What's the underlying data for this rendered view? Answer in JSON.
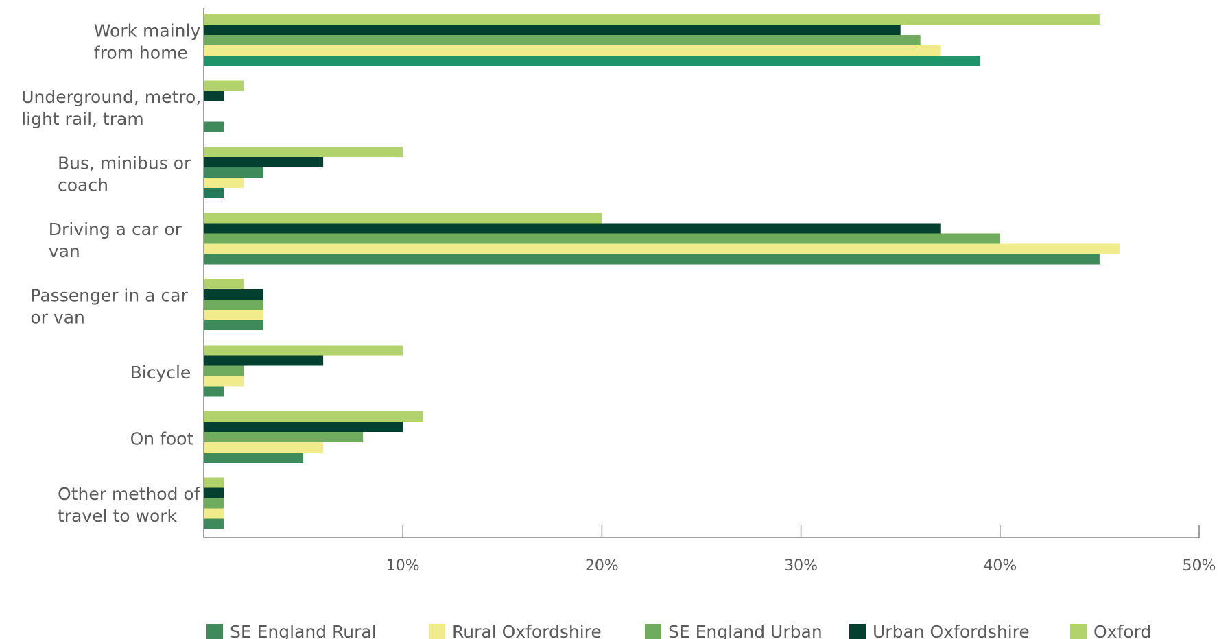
{
  "chart_data": {
    "type": "bar",
    "orientation": "horizontal",
    "categories": [
      [
        "Work mainly",
        "from home"
      ],
      [
        "Underground, metro,",
        "light rail, tram"
      ],
      [
        "Bus, minibus or",
        "coach"
      ],
      [
        "Driving a car or",
        "van"
      ],
      [
        "Passenger in a car",
        "or van"
      ],
      [
        "Bicycle"
      ],
      [
        "On foot"
      ],
      [
        "Other method of",
        "travel to work"
      ]
    ],
    "series": [
      {
        "name": "Oxford",
        "color": "#b2d36b",
        "values": [
          45,
          2,
          10,
          20,
          2,
          10,
          11,
          1
        ]
      },
      {
        "name": "Urban Oxfordshire",
        "color": "#03402f",
        "values": [
          35,
          1,
          6,
          37,
          3,
          6,
          10,
          1
        ]
      },
      {
        "name": "SE England Urban",
        "color": "#70ac5e",
        "values": [
          36,
          0,
          3,
          40,
          3,
          2,
          8,
          1
        ]
      },
      {
        "name": "Rural Oxfordshire",
        "color": "#f0ec8c",
        "values": [
          37,
          0,
          2,
          46,
          3,
          2,
          6,
          1
        ]
      },
      {
        "name": "SE England Rural",
        "color": "#3e8a5a",
        "values": [
          39,
          1,
          1,
          45,
          3,
          1,
          5,
          1
        ]
      }
    ],
    "special_colors": {
      "work_from_home_se_england_rural": "#1f946a",
      "bus_se_england_urban": "#3e8a5a",
      "bus_se_england_rural": "#237a5a"
    },
    "xlim": [
      0,
      50
    ],
    "ticks": [
      "10%",
      "20%",
      "30%",
      "40%",
      "50%"
    ],
    "tick_values": [
      10,
      20,
      30,
      40,
      50
    ],
    "legend": {
      "position": "bottom",
      "items": [
        {
          "label": "SE England Rural",
          "color": "#3e8a5a"
        },
        {
          "label": "Rural Oxfordshire",
          "color": "#f0ec8c"
        },
        {
          "label": "SE England Urban",
          "color": "#70ac5e"
        },
        {
          "label": "Urban Oxfordshire",
          "color": "#03402f"
        },
        {
          "label": "Oxford",
          "color": "#b2d36b"
        }
      ]
    },
    "grid": false
  }
}
